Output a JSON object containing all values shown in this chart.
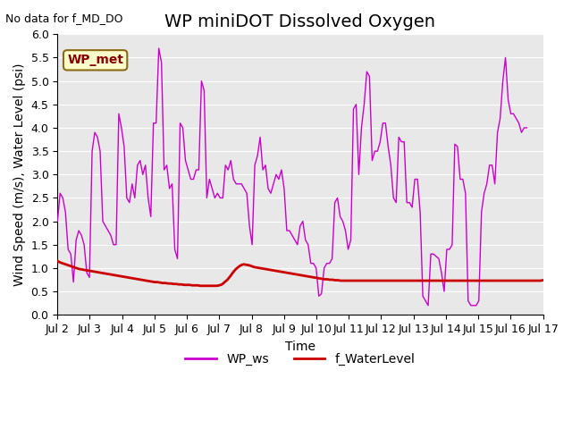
{
  "title": "WP miniDOT Dissolved Oxygen",
  "top_left_text": "No data for f_MD_DO",
  "ylabel": "Wind Speed (m/s), Water Level (psi)",
  "xlabel": "Time",
  "xlim_days": [
    2,
    17
  ],
  "ylim": [
    0.0,
    6.0
  ],
  "yticks": [
    0.0,
    0.5,
    1.0,
    1.5,
    2.0,
    2.5,
    3.0,
    3.5,
    4.0,
    4.5,
    5.0,
    5.5,
    6.0
  ],
  "xtick_labels": [
    "Jul 2",
    "Jul 3",
    "Jul 4",
    "Jul 5",
    "Jul 6",
    "Jul 7",
    "Jul 8",
    "Jul 9",
    "Jul 10",
    "Jul 11",
    "Jul 12",
    "Jul 13",
    "Jul 14",
    "Jul 15",
    "Jul 16",
    "Jul 17"
  ],
  "legend_label1": "WP_ws",
  "legend_label2": "f_WaterLevel",
  "box_label": "WP_met",
  "box_facecolor": "#ffffcc",
  "box_edgecolor": "#8B6914",
  "ws_color": "#CC00CC",
  "wl_color": "#CC0000",
  "background_color": "#e8e8e8",
  "title_fontsize": 14,
  "label_fontsize": 10,
  "tick_fontsize": 9,
  "ws_data": [
    2.0,
    2.6,
    2.5,
    2.2,
    1.4,
    1.3,
    0.7,
    1.6,
    1.8,
    1.7,
    1.5,
    0.9,
    0.8,
    3.5,
    3.9,
    3.8,
    3.5,
    2.0,
    1.9,
    1.8,
    1.7,
    1.5,
    1.5,
    4.3,
    4.0,
    3.6,
    2.5,
    2.4,
    2.8,
    2.5,
    3.2,
    3.3,
    3.0,
    3.2,
    2.5,
    2.1,
    4.1,
    4.1,
    5.7,
    5.4,
    3.1,
    3.2,
    2.7,
    2.8,
    1.4,
    1.2,
    4.1,
    4.0,
    3.3,
    3.1,
    2.9,
    2.9,
    3.1,
    3.1,
    5.0,
    4.8,
    2.5,
    2.9,
    2.7,
    2.5,
    2.6,
    2.5,
    2.5,
    3.2,
    3.1,
    3.3,
    2.9,
    2.8,
    2.8,
    2.8,
    2.7,
    2.6,
    1.9,
    1.5,
    3.2,
    3.4,
    3.8,
    3.1,
    3.2,
    2.7,
    2.6,
    2.8,
    3.0,
    2.9,
    3.1,
    2.7,
    1.8,
    1.8,
    1.7,
    1.6,
    1.5,
    1.9,
    2.0,
    1.6,
    1.5,
    1.1,
    1.1,
    1.0,
    0.4,
    0.45,
    1.0,
    1.1,
    1.1,
    1.2,
    2.4,
    2.5,
    2.1,
    2.0,
    1.8,
    1.4,
    1.6,
    4.4,
    4.5,
    3.0,
    4.0,
    4.5,
    5.2,
    5.1,
    3.3,
    3.5,
    3.5,
    3.7,
    4.1,
    4.1,
    3.6,
    3.2,
    2.5,
    2.4,
    3.8,
    3.7,
    3.7,
    2.4,
    2.4,
    2.3,
    2.9,
    2.9,
    2.2,
    0.4,
    0.3,
    0.2,
    1.3,
    1.3,
    1.25,
    1.2,
    0.9,
    0.5,
    1.4,
    1.4,
    1.5,
    3.65,
    3.6,
    2.9,
    2.9,
    2.6,
    0.3,
    0.2,
    0.2,
    0.2,
    0.3,
    2.2,
    2.6,
    2.8,
    3.2,
    3.2,
    2.8,
    3.9,
    4.2,
    5.0,
    5.5,
    4.6,
    4.3,
    4.3,
    4.2,
    4.1,
    3.9,
    4.0,
    4.0
  ],
  "wl_data": [
    1.15,
    1.12,
    1.1,
    1.08,
    1.06,
    1.04,
    1.02,
    1.0,
    0.98,
    0.97,
    0.96,
    0.95,
    0.94,
    0.93,
    0.92,
    0.91,
    0.9,
    0.89,
    0.88,
    0.87,
    0.86,
    0.85,
    0.84,
    0.83,
    0.82,
    0.81,
    0.8,
    0.79,
    0.78,
    0.77,
    0.76,
    0.75,
    0.74,
    0.73,
    0.72,
    0.71,
    0.7,
    0.7,
    0.69,
    0.68,
    0.68,
    0.67,
    0.67,
    0.66,
    0.66,
    0.65,
    0.65,
    0.64,
    0.64,
    0.64,
    0.63,
    0.63,
    0.63,
    0.62,
    0.62,
    0.62,
    0.62,
    0.62,
    0.62,
    0.62,
    0.63,
    0.65,
    0.7,
    0.75,
    0.82,
    0.9,
    0.97,
    1.02,
    1.06,
    1.08,
    1.07,
    1.06,
    1.04,
    1.02,
    1.01,
    1.0,
    0.99,
    0.98,
    0.97,
    0.96,
    0.95,
    0.94,
    0.93,
    0.92,
    0.91,
    0.9,
    0.89,
    0.88,
    0.87,
    0.86,
    0.85,
    0.84,
    0.83,
    0.82,
    0.81,
    0.8,
    0.79,
    0.78,
    0.77,
    0.76,
    0.76,
    0.75,
    0.75,
    0.74,
    0.74,
    0.73,
    0.73,
    0.73,
    0.73,
    0.73,
    0.73,
    0.73,
    0.73,
    0.73,
    0.73,
    0.73,
    0.73,
    0.73,
    0.73,
    0.73,
    0.73,
    0.73,
    0.73,
    0.73,
    0.73,
    0.73,
    0.73,
    0.73,
    0.73,
    0.73,
    0.73,
    0.73,
    0.73,
    0.73,
    0.73,
    0.73,
    0.73,
    0.73,
    0.73,
    0.73,
    0.73,
    0.73,
    0.73,
    0.73,
    0.73,
    0.73,
    0.73,
    0.73,
    0.73,
    0.73,
    0.73,
    0.73,
    0.73,
    0.73,
    0.73,
    0.73,
    0.73,
    0.73,
    0.73,
    0.73,
    0.73,
    0.73,
    0.73,
    0.73,
    0.73,
    0.73,
    0.73,
    0.73,
    0.73,
    0.73,
    0.73,
    0.73,
    0.73,
    0.73,
    0.73,
    0.73,
    0.73,
    0.73,
    0.73,
    0.73,
    0.74
  ]
}
